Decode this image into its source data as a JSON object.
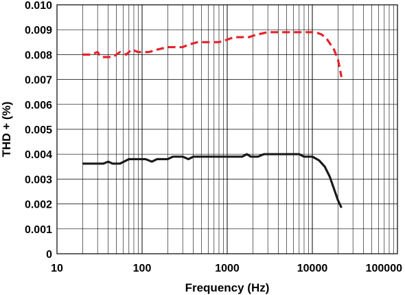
{
  "chart_data": {
    "type": "line",
    "title": "",
    "xlabel": "Frequency (Hz)",
    "ylabel": "THD + (%)",
    "x_scale": "log",
    "xlim": [
      10,
      100000
    ],
    "ylim": [
      0,
      0.01
    ],
    "x_ticks": [
      "10",
      "100",
      "1000",
      "10000",
      "100000"
    ],
    "y_ticks": [
      "0",
      "0.001",
      "0.002",
      "0.003",
      "0.004",
      "0.005",
      "0.006",
      "0.007",
      "0.008",
      "0.009",
      "0.010"
    ],
    "grid": true,
    "legend": "none",
    "series": [
      {
        "color": "#e3242b",
        "line_style": "dashed",
        "points": [
          [
            20,
            0.008
          ],
          [
            25,
            0.008
          ],
          [
            30,
            0.0081
          ],
          [
            33,
            0.0079
          ],
          [
            45,
            0.0079
          ],
          [
            55,
            0.0081
          ],
          [
            65,
            0.008
          ],
          [
            75,
            0.0082
          ],
          [
            90,
            0.0081
          ],
          [
            120,
            0.0081
          ],
          [
            150,
            0.0082
          ],
          [
            200,
            0.0083
          ],
          [
            300,
            0.0083
          ],
          [
            350,
            0.0084
          ],
          [
            450,
            0.0085
          ],
          [
            800,
            0.0085
          ],
          [
            1000,
            0.0086
          ],
          [
            1200,
            0.0087
          ],
          [
            1800,
            0.0087
          ],
          [
            2200,
            0.0088
          ],
          [
            3000,
            0.0089
          ],
          [
            5000,
            0.0089
          ],
          [
            9000,
            0.0089
          ],
          [
            11000,
            0.0089
          ],
          [
            13000,
            0.0088
          ],
          [
            15000,
            0.0086
          ],
          [
            18000,
            0.0082
          ],
          [
            20000,
            0.0078
          ],
          [
            22000,
            0.0071
          ]
        ]
      },
      {
        "color": "#1a1a1a",
        "line_style": "solid",
        "points": [
          [
            20,
            0.00362
          ],
          [
            35,
            0.00362
          ],
          [
            40,
            0.0037
          ],
          [
            45,
            0.00362
          ],
          [
            55,
            0.00362
          ],
          [
            70,
            0.0038
          ],
          [
            110,
            0.0038
          ],
          [
            130,
            0.0037
          ],
          [
            150,
            0.0038
          ],
          [
            200,
            0.0038
          ],
          [
            230,
            0.0039
          ],
          [
            300,
            0.0039
          ],
          [
            350,
            0.0038
          ],
          [
            400,
            0.0039
          ],
          [
            1500,
            0.0039
          ],
          [
            1700,
            0.004
          ],
          [
            1900,
            0.0039
          ],
          [
            2300,
            0.0039
          ],
          [
            2700,
            0.004
          ],
          [
            7000,
            0.004
          ],
          [
            8000,
            0.0039
          ],
          [
            10000,
            0.0039
          ],
          [
            12000,
            0.00375
          ],
          [
            14000,
            0.0035
          ],
          [
            16000,
            0.0031
          ],
          [
            18000,
            0.0026
          ],
          [
            20000,
            0.00215
          ],
          [
            22000,
            0.00185
          ]
        ]
      }
    ]
  }
}
